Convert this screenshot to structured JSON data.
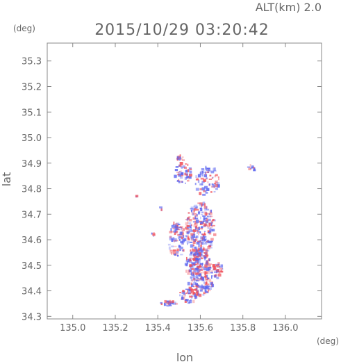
{
  "chart_data": {
    "type": "scatter",
    "title": "2015/10/29 03:20:42",
    "subtitle": "ALT(km) 2.0",
    "xlabel": "lon",
    "ylabel": "lat",
    "xunit": "(deg)",
    "yunit": "(deg)",
    "xlim": [
      134.88,
      136.17
    ],
    "ylim": [
      34.29,
      35.37
    ],
    "xticks": [
      135.0,
      135.2,
      135.4,
      135.6,
      135.8,
      136.0
    ],
    "xtick_labels": [
      "135.0",
      "135.2",
      "135.4",
      "135.6",
      "135.8",
      "136.0"
    ],
    "yticks": [
      34.3,
      34.4,
      34.5,
      34.6,
      34.7,
      34.8,
      34.9,
      35.0,
      35.1,
      35.2,
      35.3
    ],
    "ytick_labels": [
      "34.3",
      "34.4",
      "34.5",
      "34.6",
      "34.7",
      "34.8",
      "34.9",
      "35.0",
      "35.1",
      "35.2",
      "35.3"
    ],
    "grid": false,
    "colors": {
      "positive": "#f0505a",
      "negative": "#5a64f0",
      "frame": "#888888"
    },
    "blobs": [
      {
        "lon": 135.6,
        "lat": 34.64,
        "rlon": 0.07,
        "rlat": 0.11,
        "n": 260
      },
      {
        "lon": 135.59,
        "lat": 34.5,
        "rlon": 0.06,
        "rlat": 0.06,
        "n": 170
      },
      {
        "lon": 135.6,
        "lat": 34.42,
        "rlon": 0.06,
        "rlat": 0.04,
        "n": 90
      },
      {
        "lon": 135.55,
        "lat": 34.38,
        "rlon": 0.05,
        "rlat": 0.03,
        "n": 45
      },
      {
        "lon": 135.45,
        "lat": 34.35,
        "rlon": 0.04,
        "rlat": 0.01,
        "n": 25
      },
      {
        "lon": 135.49,
        "lat": 34.6,
        "rlon": 0.04,
        "rlat": 0.07,
        "n": 90
      },
      {
        "lon": 135.52,
        "lat": 34.86,
        "rlon": 0.04,
        "rlat": 0.04,
        "n": 50
      },
      {
        "lon": 135.63,
        "lat": 34.83,
        "rlon": 0.06,
        "rlat": 0.06,
        "n": 75
      },
      {
        "lon": 135.51,
        "lat": 34.92,
        "rlon": 0.02,
        "rlat": 0.01,
        "n": 12
      },
      {
        "lon": 135.84,
        "lat": 34.88,
        "rlon": 0.02,
        "rlat": 0.02,
        "n": 12
      },
      {
        "lon": 135.68,
        "lat": 34.47,
        "rlon": 0.03,
        "rlat": 0.04,
        "n": 40
      },
      {
        "lon": 135.3,
        "lat": 34.77,
        "rlon": 0.003,
        "rlat": 0.003,
        "n": 2
      },
      {
        "lon": 135.38,
        "lat": 34.62,
        "rlon": 0.01,
        "rlat": 0.01,
        "n": 4
      },
      {
        "lon": 135.42,
        "lat": 34.72,
        "rlon": 0.01,
        "rlat": 0.01,
        "n": 3
      }
    ]
  }
}
